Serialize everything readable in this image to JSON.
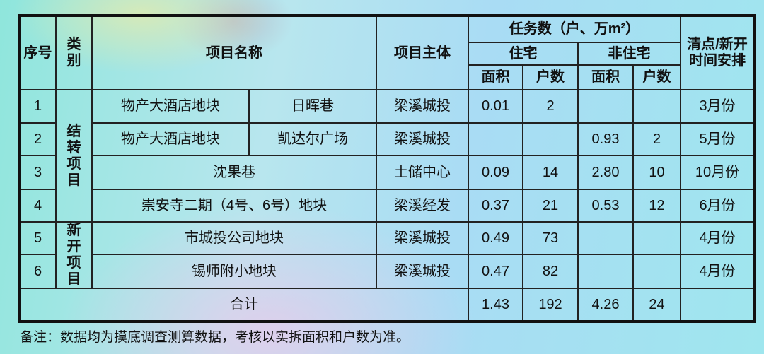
{
  "headers": {
    "seq": "序号",
    "category": "类别",
    "project_name": "项目名称",
    "entity": "项目主体",
    "tasks": "任务数（户、万m²）",
    "residential": "住宅",
    "non_residential": "非住宅",
    "area": "面积",
    "households": "户数",
    "schedule": "清点/新开时间安排"
  },
  "categories": {
    "carryover": "结转项目",
    "new": "新开项目"
  },
  "rows": [
    {
      "seq": "1",
      "name": "物产大酒店地块",
      "sub": "日晖巷",
      "entity": "梁溪城投",
      "res_area": "0.01",
      "res_hh": "2",
      "non_area": "",
      "non_hh": "",
      "schedule": "3月份"
    },
    {
      "seq": "2",
      "name": "物产大酒店地块",
      "sub": "凯达尔广场",
      "entity": "梁溪城投",
      "res_area": "",
      "res_hh": "",
      "non_area": "0.93",
      "non_hh": "2",
      "schedule": "5月份"
    },
    {
      "seq": "3",
      "name": "沈果巷",
      "entity": "土储中心",
      "res_area": "0.09",
      "res_hh": "14",
      "non_area": "2.80",
      "non_hh": "10",
      "schedule": "10月份"
    },
    {
      "seq": "4",
      "name": "崇安寺二期（4号、6号）地块",
      "entity": "梁溪经发",
      "res_area": "0.37",
      "res_hh": "21",
      "non_area": "0.53",
      "non_hh": "12",
      "schedule": "6月份"
    },
    {
      "seq": "5",
      "name": "市城投公司地块",
      "entity": "梁溪城投",
      "res_area": "0.49",
      "res_hh": "73",
      "non_area": "",
      "non_hh": "",
      "schedule": "4月份"
    },
    {
      "seq": "6",
      "name": "锡师附小地块",
      "entity": "梁溪城投",
      "res_area": "0.47",
      "res_hh": "82",
      "non_area": "",
      "non_hh": "",
      "schedule": "4月份"
    }
  ],
  "total": {
    "label": "合计",
    "res_area": "1.43",
    "res_hh": "192",
    "non_area": "4.26",
    "non_hh": "24"
  },
  "note": "备注：数据均为摸底调查测算数据，考核以实拆面积和户数为准。"
}
